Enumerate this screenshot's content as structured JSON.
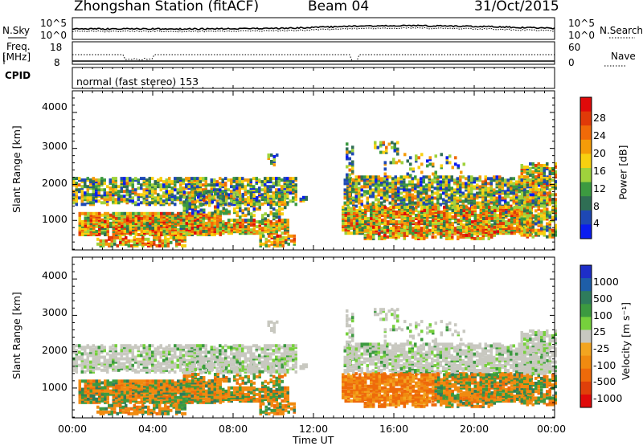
{
  "header": {
    "station": "Zhongshan Station (fitACF)",
    "beam": "Beam 04",
    "date": "31/Oct/2015"
  },
  "top_panels": {
    "nsky_label": "N.Sky",
    "nsky_ticks": [
      "10^5",
      "10^0"
    ],
    "nsearch_label": "N.Search",
    "nsearch_ticks": [
      "10^5",
      "10^0"
    ],
    "freq_label_1": "Freq.",
    "freq_label_2": "[MHz]",
    "freq_ticks": [
      "18",
      "8"
    ],
    "nave_label": "Nave",
    "nave_ticks": [
      "60",
      "0"
    ],
    "cpid_label": "CPID",
    "cpid_text": "normal (fast stereo) 153"
  },
  "x_axis": {
    "label": "Time UT",
    "ticks": [
      "00:00",
      "04:00",
      "08:00",
      "12:00",
      "16:00",
      "20:00",
      "00:00"
    ]
  },
  "colors": {
    "power": [
      "#0a1cf0",
      "#1e48b4",
      "#2f6e54",
      "#3c9a40",
      "#9fd23c",
      "#f8d010",
      "#f59c08",
      "#f06a08",
      "#e03a08",
      "#e00a0a"
    ],
    "velocity": [
      "#1e2ec8",
      "#1e5ea8",
      "#2e7c5c",
      "#3c9a40",
      "#76d03c",
      "#c8c8c0",
      "#f3a520",
      "#f08a10",
      "#ee6a0a",
      "#e0400a",
      "#e00a0a"
    ]
  },
  "chart_data": [
    {
      "type": "heatmap",
      "name": "Power",
      "ylabel": "Slant Range [km]",
      "yticks": [
        1000,
        2000,
        3000,
        4000
      ],
      "ylim": [
        180,
        4600
      ],
      "xlim_hours": [
        0,
        24
      ],
      "colorbar_label": "Power [dB]",
      "colorbar_ticks": [
        "4",
        "8",
        "12",
        "16",
        "20",
        "24",
        "28"
      ],
      "colorbar_range": [
        0,
        30
      ]
    },
    {
      "type": "heatmap",
      "name": "Velocity",
      "ylabel": "Slant Range [km]",
      "yticks": [
        1000,
        2000,
        3000,
        4000
      ],
      "ylim": [
        180,
        4600
      ],
      "xlim_hours": [
        0,
        24
      ],
      "colorbar_label": "Velocity [m s⁻¹]",
      "colorbar_ticks": [
        "1000",
        "500",
        "100",
        "25",
        "-25",
        "-100",
        "-500",
        "-1000"
      ]
    }
  ]
}
